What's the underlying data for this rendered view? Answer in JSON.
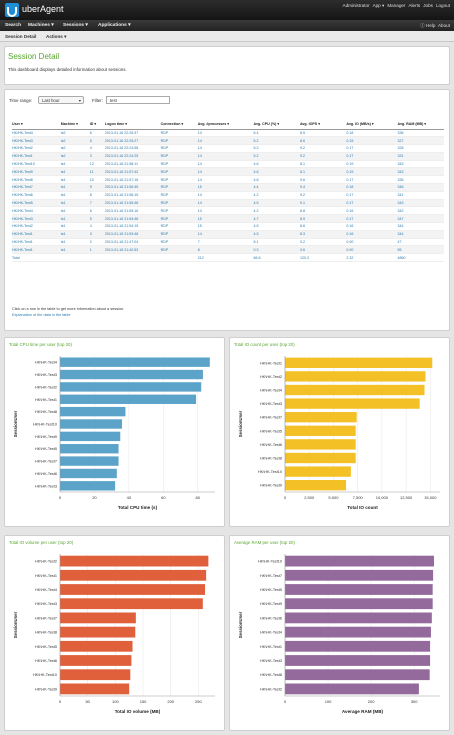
{
  "app": {
    "name": "uberAgent"
  },
  "usermenu": [
    "Administrator",
    "App ▾",
    "Manager",
    "Alerts",
    "Jobs",
    "Logout"
  ],
  "nav": [
    "Search",
    "Machines ▾",
    "Sessions ▾",
    "Applications ▾"
  ],
  "nav_right": [
    "ⓘ Help",
    "About"
  ],
  "subnav": {
    "title": "Session Detail",
    "actions": "Actions ▾"
  },
  "header": {
    "title": "Session Detail",
    "description": "This dashboard displays detailed information about sessions."
  },
  "filters": {
    "time_label": "Time range:",
    "time_value": "Last hour",
    "filter_label": "Filter:",
    "filter_value": "test"
  },
  "table": {
    "headers": [
      "User ▾",
      "Machine ▾",
      "ID ▾",
      "Logon time ▾",
      "Connection ▾",
      "Avg. #processes ▾",
      "Avg. CPU (%) ▾",
      "Avg. IOPS ▾",
      "Avg. IO (MB/s) ▾",
      "Avg. RAM (MB) ▾"
    ],
    "rows": [
      [
        "HK\\HK-Test4",
        "ts2",
        "6",
        "2013-01-16 22:25:37",
        "RDP",
        "14",
        "6.4",
        "8.5",
        "0.18",
        "336"
      ],
      [
        "HK\\HK-Test3",
        "ts2",
        "5",
        "2013-01-16 22:25:27",
        "RDP",
        "14",
        "5.2",
        "8.6",
        "0.15",
        "327"
      ],
      [
        "HK\\HK-Test2",
        "ts2",
        "4",
        "2013-01-16 22:24:58",
        "RDP",
        "14",
        "5.3",
        "9.2",
        "0.17",
        "328"
      ],
      [
        "HK\\HK-Test1",
        "ts2",
        "3",
        "2013-01-16 22:24:25",
        "RDP",
        "14",
        "5.2",
        "9.2",
        "0.17",
        "331"
      ],
      [
        "HK\\HK-Test10",
        "ts1",
        "12",
        "2013-01-16 21:58:11",
        "RDP",
        "14",
        "4.6",
        "8.1",
        "0.19",
        "343"
      ],
      [
        "HK\\HK-Test9",
        "ts1",
        "11",
        "2013-01-16 21:57:42",
        "RDP",
        "14",
        "4.6",
        "8.1",
        "0.19",
        "343"
      ],
      [
        "HK\\HK-Test8",
        "ts1",
        "10",
        "2013-01-16 21:57:16",
        "RDP",
        "14",
        "4.8",
        "9.6",
        "0.17",
        "336"
      ],
      [
        "HK\\HK-Test7",
        "ts1",
        "9",
        "2013-01-16 21:56:45",
        "RDP",
        "15",
        "4.4",
        "9.4",
        "0.18",
        "346"
      ],
      [
        "HK\\HK-Test6",
        "ts1",
        "8",
        "2013-01-16 21:56:15",
        "RDP",
        "14",
        "4.2",
        "9.2",
        "0.17",
        "341"
      ],
      [
        "HK\\HK-Test5",
        "ts1",
        "7",
        "2013-01-16 21:55:46",
        "RDP",
        "14",
        "4.5",
        "9.1",
        "0.17",
        "343"
      ],
      [
        "HK\\HK-Test4",
        "ts1",
        "6",
        "2013-01-16 21:55:16",
        "RDP",
        "14",
        "4.2",
        "8.8",
        "0.16",
        "342"
      ],
      [
        "HK\\HK-Test3",
        "ts1",
        "5",
        "2013-01-16 21:54:46",
        "RDP",
        "15",
        "4.7",
        "8.9",
        "0.17",
        "347"
      ],
      [
        "HK\\HK-Test2",
        "ts1",
        "4",
        "2013-01-16 21:54:15",
        "RDP",
        "15",
        "4.5",
        "8.6",
        "0.16",
        "344"
      ],
      [
        "HK\\HK-Test1",
        "ts1",
        "3",
        "2013-01-16 21:53:46",
        "RDP",
        "14",
        "4.5",
        "8.3",
        "0.16",
        "344"
      ],
      [
        "HK\\HK-Test1",
        "ts1",
        "2",
        "2013-01-16 21:47:04",
        "RDP",
        "7",
        "8.1",
        "0.2",
        "0.00",
        "47"
      ],
      [
        "HK\\HK-Test1",
        "ts1",
        "1",
        "2013-01-16 21:42:53",
        "RDP",
        "8",
        "0.3",
        "3.6",
        "0.00",
        "55"
      ]
    ],
    "total": [
      "Total",
      "",
      "",
      "",
      "",
      "212",
      "66.6",
      "120.3",
      "2.32",
      "4860"
    ]
  },
  "notes": {
    "click": "Click on a row in the table to get more information about a session.",
    "explain": "Explanation of the data in the table"
  },
  "chart_data": [
    {
      "type": "bar",
      "title": "Total CPU time per user (top 20)",
      "ylabel": "SessionUser",
      "xlabel": "Total CPU time (s)",
      "xlim": [
        0,
        90
      ],
      "ticks": [
        "0",
        "20",
        "40",
        "60",
        "80"
      ],
      "color": "#5ba3c9",
      "categories": [
        "HK\\HK-Test4",
        "HK\\HK-Test3",
        "HK\\HK-Test2",
        "HK\\HK-Test1",
        "HK\\HK-Test8",
        "HK\\HK-Test10",
        "HK\\HK-Test9",
        "HK\\HK-Test5",
        "HK\\HK-Test7",
        "HK\\HK-Test6",
        "HK\\HK-Test3"
      ],
      "values": [
        87,
        83,
        82,
        79,
        38,
        36,
        35,
        34,
        34,
        33,
        32
      ]
    },
    {
      "type": "bar",
      "title": "Total IO count per user (top 20)",
      "ylabel": "SessionUser",
      "xlabel": "Total IO count",
      "xlim": [
        0,
        16000
      ],
      "ticks": [
        "0",
        "2,500",
        "5,000",
        "7,500",
        "10,000",
        "12,500",
        "15,000"
      ],
      "color": "#f3c025",
      "categories": [
        "HK\\HK-Test1",
        "HK\\HK-Test2",
        "HK\\HK-Test4",
        "HK\\HK-Test3",
        "HK\\HK-Test7",
        "HK\\HK-Test5",
        "HK\\HK-Test6",
        "HK\\HK-Test8",
        "HK\\HK-Test10",
        "HK\\HK-Test9"
      ],
      "values": [
        15200,
        14500,
        14400,
        13900,
        7400,
        7300,
        7300,
        7300,
        6800,
        6300
      ]
    },
    {
      "type": "bar",
      "title": "Total IO volume per user (top 20)",
      "ylabel": "SessionUser",
      "xlabel": "Total IO volume (MB)",
      "xlim": [
        0,
        280
      ],
      "ticks": [
        "0",
        "50",
        "100",
        "150",
        "200",
        "250"
      ],
      "color": "#e0603c",
      "categories": [
        "HK\\HK-Test2",
        "HK\\HK-Test1",
        "HK\\HK-Test4",
        "HK\\HK-Test3",
        "HK\\HK-Test7",
        "HK\\HK-Test8",
        "HK\\HK-Test5",
        "HK\\HK-Test6",
        "HK\\HK-Test10",
        "HK\\HK-Test9"
      ],
      "values": [
        268,
        264,
        262,
        258,
        137,
        136,
        131,
        129,
        127,
        125
      ]
    },
    {
      "type": "bar",
      "title": "Average RAM per user (top 20)",
      "ylabel": "SessionUser",
      "xlabel": "Average RAM (MB)",
      "xlim": [
        0,
        360
      ],
      "ticks": [
        "0",
        "100",
        "200",
        "300"
      ],
      "color": "#946a9c",
      "categories": [
        "HK\\HK-Test10",
        "HK\\HK-Test7",
        "HK\\HK-Test5",
        "HK\\HK-Test9",
        "HK\\HK-Test6",
        "HK\\HK-Test4",
        "HK\\HK-Test1",
        "HK\\HK-Test3",
        "HK\\HK-Test8",
        "HK\\HK-Test2"
      ],
      "values": [
        346,
        344,
        343,
        343,
        341,
        339,
        337,
        337,
        336,
        311
      ]
    }
  ]
}
